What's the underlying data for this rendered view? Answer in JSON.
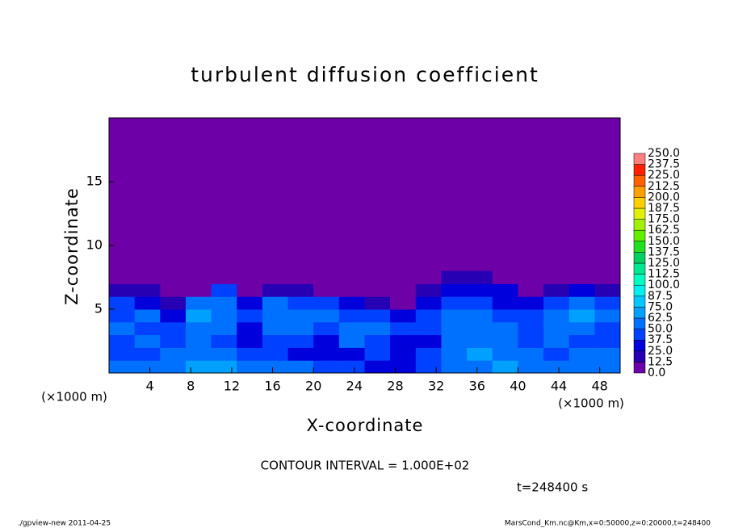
{
  "chart_data": {
    "type": "heatmap",
    "title": "turbulent diffusion coefficient",
    "x_label": "X-coordinate",
    "y_label": "Z-coordinate",
    "x_unit": "(×1000 m)",
    "y_unit": "(×1000 m)",
    "xlim": [
      0,
      50
    ],
    "ylim": [
      0,
      20
    ],
    "xticks": [
      4,
      8,
      12,
      16,
      20,
      24,
      28,
      32,
      36,
      40,
      44,
      48
    ],
    "yticks": [
      5,
      10,
      15
    ],
    "x": [
      1.25,
      3.75,
      6.25,
      8.75,
      11.25,
      13.75,
      16.25,
      18.75,
      21.25,
      23.75,
      26.25,
      28.75,
      31.25,
      33.75,
      36.25,
      38.75,
      41.25,
      43.75,
      46.25,
      48.75
    ],
    "y": [
      0.5,
      1.5,
      2.5,
      3.5,
      4.5,
      5.5,
      6.5,
      7.5
    ],
    "z": [
      [
        60,
        55,
        50,
        70,
        65,
        60,
        55,
        50,
        40,
        45,
        35,
        30,
        45,
        50,
        60,
        70,
        55,
        50,
        60,
        55
      ],
      [
        45,
        40,
        55,
        60,
        50,
        45,
        40,
        35,
        30,
        35,
        40,
        35,
        40,
        60,
        65,
        60,
        50,
        45,
        55,
        50
      ],
      [
        40,
        50,
        45,
        55,
        40,
        30,
        45,
        40,
        35,
        50,
        45,
        30,
        35,
        55,
        60,
        55,
        40,
        50,
        45,
        40
      ],
      [
        50,
        45,
        40,
        60,
        55,
        35,
        55,
        50,
        45,
        55,
        50,
        40,
        40,
        50,
        55,
        50,
        45,
        55,
        50,
        45
      ],
      [
        45,
        55,
        35,
        65,
        60,
        45,
        60,
        55,
        50,
        45,
        40,
        30,
        45,
        55,
        50,
        45,
        40,
        60,
        65,
        55
      ],
      [
        40,
        35,
        20,
        50,
        55,
        35,
        50,
        45,
        40,
        30,
        20,
        10,
        35,
        45,
        45,
        35,
        25,
        45,
        55,
        45
      ],
      [
        20,
        15,
        5,
        10,
        40,
        10,
        20,
        15,
        5,
        5,
        0,
        0,
        20,
        30,
        35,
        25,
        5,
        20,
        25,
        15
      ],
      [
        0,
        0,
        0,
        0,
        0,
        0,
        0,
        0,
        0,
        0,
        0,
        0,
        5,
        15,
        20,
        10,
        0,
        0,
        0,
        0
      ]
    ],
    "levels": [
      {
        "value": 0,
        "label": "0.0"
      },
      {
        "value": 12.5,
        "label": "12.5"
      },
      {
        "value": 25,
        "label": "25.0"
      },
      {
        "value": 37.5,
        "label": "37.5"
      },
      {
        "value": 50,
        "label": "50.0"
      },
      {
        "value": 62.5,
        "label": "62.5"
      },
      {
        "value": 75,
        "label": "75.0"
      },
      {
        "value": 87.5,
        "label": "87.5"
      },
      {
        "value": 100,
        "label": "100.0"
      },
      {
        "value": 112.5,
        "label": "112.5"
      },
      {
        "value": 125,
        "label": "125.0"
      },
      {
        "value": 137.5,
        "label": "137.5"
      },
      {
        "value": 150,
        "label": "150.0"
      },
      {
        "value": 162.5,
        "label": "162.5"
      },
      {
        "value": 175,
        "label": "175.0"
      },
      {
        "value": 187.5,
        "label": "187.5"
      },
      {
        "value": 200,
        "label": "200.0"
      },
      {
        "value": 212.5,
        "label": "212.5"
      },
      {
        "value": 225,
        "label": "225.0"
      },
      {
        "value": 237.5,
        "label": "237.5"
      },
      {
        "value": 250,
        "label": "250.0"
      }
    ],
    "colors": [
      "#6e00a8",
      "#2800b4",
      "#0000dc",
      "#0040ff",
      "#0070ff",
      "#00a0ff",
      "#00c8ff",
      "#00f0f0",
      "#00ffc0",
      "#00e890",
      "#00d060",
      "#20e020",
      "#60f000",
      "#a0f000",
      "#e0f000",
      "#ffd000",
      "#ffa000",
      "#ff6000",
      "#ff2000",
      "#ff8080"
    ],
    "contour_note": "CONTOUR INTERVAL = 1.000E+02",
    "time_label": "t=248400 s",
    "footer_left": "./gpview-new  2011-04-25",
    "footer_right": "MarsCond_Km.nc@Km,x=0:50000,z=0:20000,t=248400"
  }
}
